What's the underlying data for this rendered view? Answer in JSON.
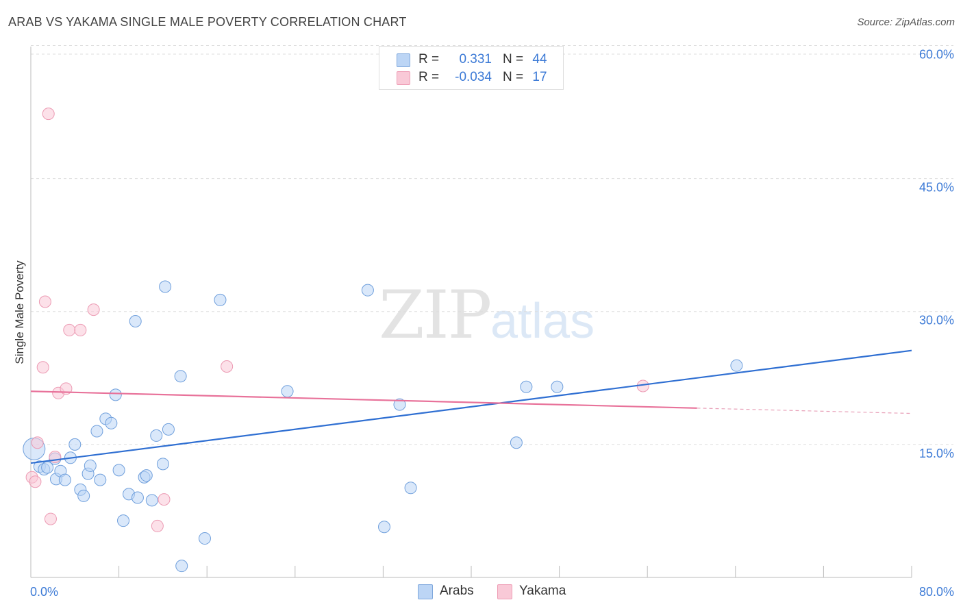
{
  "header": {
    "title": "ARAB VS YAKAMA SINGLE MALE POVERTY CORRELATION CHART",
    "source": "Source: ZipAtlas.com"
  },
  "watermark": {
    "zip": "ZIP",
    "atlas": "atlas"
  },
  "legend": {
    "r_label": "R =",
    "n_label": "N =",
    "rows": [
      {
        "r": "0.331",
        "n": "44"
      },
      {
        "r": "-0.034",
        "n": "17"
      }
    ]
  },
  "colors": {
    "blue": "#3c7ad6",
    "pink": "#e8729a",
    "blue_fill": "#bcd5f5",
    "pink_fill": "#f9c9d7"
  },
  "chart_data": {
    "type": "scatter",
    "title": "ARAB VS YAKAMA SINGLE MALE POVERTY CORRELATION CHART",
    "xlabel": "",
    "ylabel": "Single Male Poverty",
    "xlim": [
      0,
      80
    ],
    "ylim": [
      0,
      60.5
    ],
    "x_tick_labels": [
      "0.0%",
      "80.0%"
    ],
    "y_ticks": [
      15,
      30,
      45,
      60
    ],
    "y_tick_labels": [
      "15.0%",
      "30.0%",
      "45.0%",
      "60.0%"
    ],
    "series": [
      {
        "name": "Arabs",
        "color": "#3c7ad6",
        "r": 0.331,
        "n": 44,
        "trend": {
          "x0": 0,
          "y0": 12.9,
          "x1": 80,
          "y1": 25.6
        },
        "points": [
          [
            0.3,
            14.5
          ],
          [
            0.8,
            12.5
          ],
          [
            1.2,
            12.2
          ],
          [
            1.5,
            12.4
          ],
          [
            2.2,
            13.4
          ],
          [
            2.3,
            11.1
          ],
          [
            2.7,
            12.0
          ],
          [
            3.1,
            11.0
          ],
          [
            3.6,
            13.5
          ],
          [
            4.0,
            15.0
          ],
          [
            4.5,
            9.9
          ],
          [
            4.8,
            9.2
          ],
          [
            5.2,
            11.7
          ],
          [
            5.4,
            12.6
          ],
          [
            6.0,
            16.5
          ],
          [
            6.3,
            11.0
          ],
          [
            6.8,
            17.9
          ],
          [
            7.3,
            17.4
          ],
          [
            7.7,
            20.6
          ],
          [
            8.0,
            12.1
          ],
          [
            8.4,
            6.4
          ],
          [
            8.9,
            9.4
          ],
          [
            9.5,
            28.9
          ],
          [
            9.7,
            9.0
          ],
          [
            10.3,
            11.3
          ],
          [
            10.5,
            11.5
          ],
          [
            11.0,
            8.7
          ],
          [
            11.4,
            16.0
          ],
          [
            12.0,
            12.8
          ],
          [
            12.2,
            32.8
          ],
          [
            12.5,
            16.7
          ],
          [
            13.6,
            22.7
          ],
          [
            13.7,
            1.3
          ],
          [
            15.8,
            4.4
          ],
          [
            17.2,
            31.3
          ],
          [
            23.3,
            21.0
          ],
          [
            30.6,
            32.4
          ],
          [
            32.1,
            5.7
          ],
          [
            33.5,
            19.5
          ],
          [
            34.5,
            10.1
          ],
          [
            44.1,
            15.2
          ],
          [
            45.0,
            21.5
          ],
          [
            47.8,
            21.5
          ],
          [
            64.1,
            23.9
          ]
        ]
      },
      {
        "name": "Yakama",
        "color": "#e8729a",
        "r": -0.034,
        "n": 17,
        "trend": {
          "x0": 0,
          "y0": 21.0,
          "x1": 60.5,
          "y1": 19.1
        },
        "trend_dashed": {
          "x0": 60.5,
          "y0": 19.1,
          "x1": 80,
          "y1": 18.5
        },
        "points": [
          [
            0.1,
            11.3
          ],
          [
            0.4,
            10.8
          ],
          [
            0.6,
            15.2
          ],
          [
            1.1,
            23.7
          ],
          [
            1.3,
            31.1
          ],
          [
            1.6,
            52.3
          ],
          [
            1.8,
            6.6
          ],
          [
            2.2,
            13.6
          ],
          [
            2.5,
            20.8
          ],
          [
            3.2,
            21.3
          ],
          [
            3.5,
            27.9
          ],
          [
            4.5,
            27.9
          ],
          [
            5.7,
            30.2
          ],
          [
            11.5,
            5.8
          ],
          [
            12.1,
            8.8
          ],
          [
            17.8,
            23.8
          ],
          [
            55.6,
            21.6
          ]
        ]
      }
    ]
  }
}
